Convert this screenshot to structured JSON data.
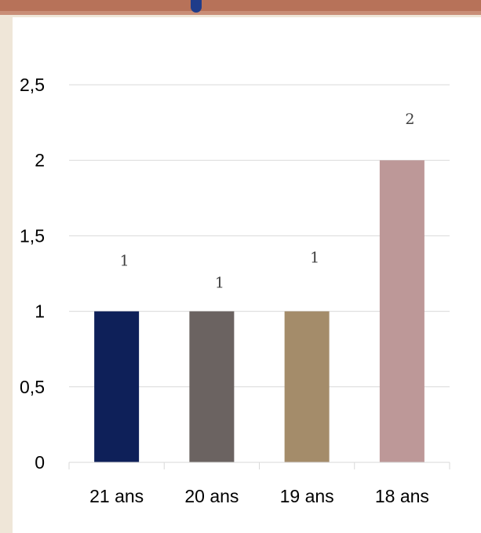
{
  "chart_data": {
    "type": "bar",
    "title": "",
    "xlabel": "",
    "ylabel": "",
    "categories": [
      "21 ans",
      "20 ans",
      "19 ans",
      "18 ans"
    ],
    "values": [
      1,
      1,
      1,
      2
    ],
    "data_labels": [
      "1",
      "1",
      "1",
      "2"
    ],
    "colors": [
      "#0e2059",
      "#6b6361",
      "#a48c6a",
      "#bd9898"
    ],
    "ylim": [
      0,
      2.5
    ],
    "yticks": [
      "0",
      "0,5",
      "1",
      "1,5",
      "2",
      "2,5"
    ],
    "grid": true,
    "legend": "none"
  }
}
